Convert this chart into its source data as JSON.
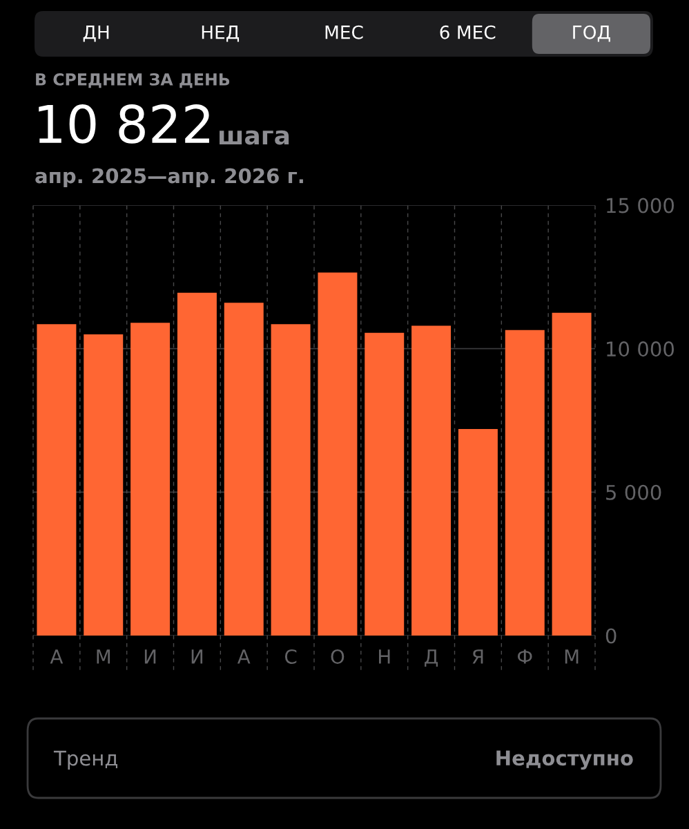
{
  "chart_data": {
    "type": "bar",
    "title": "10 822",
    "subtitle": "апр. 2025—апр. 2026 г.",
    "annotations": [
      "ДН",
      "НЕД",
      "МЕС",
      "6 МЕС",
      "ГОД",
      "В СРЕДНЕМ ЗА ДЕНЬ",
      "шага",
      "Тренд",
      "Недоступно"
    ],
    "categories": [
      "А",
      "М",
      "И",
      "И",
      "А",
      "С",
      "О",
      "Н",
      "Д",
      "Я",
      "Ф",
      "М"
    ],
    "values": [
      10850,
      10500,
      10900,
      11950,
      11600,
      10850,
      12650,
      10550,
      10800,
      7200,
      10650,
      11250
    ],
    "color": "#ff6633",
    "ylim": [
      0,
      15000
    ],
    "yticks": [
      {
        "value": 0,
        "label": "0"
      },
      {
        "value": 5000,
        "label": "5 000"
      },
      {
        "value": 10000,
        "label": "10 000"
      },
      {
        "value": 15000,
        "label": "15 000"
      }
    ],
    "grid": true
  }
}
